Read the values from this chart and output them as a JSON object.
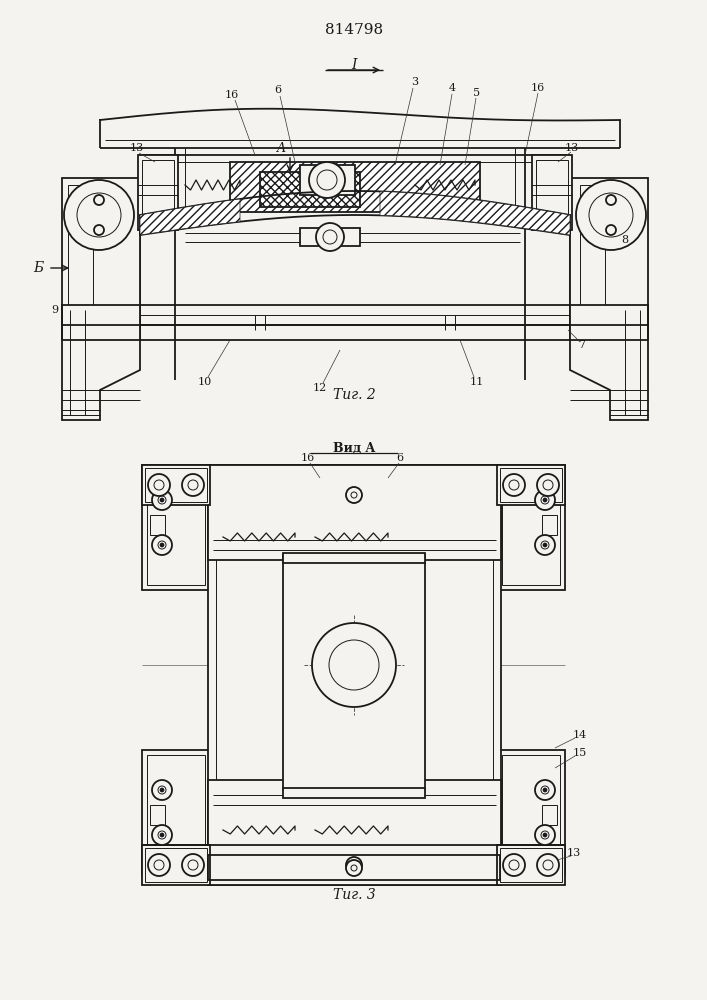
{
  "title": "814798",
  "bg_color": "#f5f3ef",
  "line_color": "#1a1a1a",
  "fig2_caption": "Τиг. 2",
  "fig3_caption": "Τиг. 3",
  "vida_label": "Вид A",
  "section_label": "I",
  "B_label": "Б",
  "A_label": "A"
}
